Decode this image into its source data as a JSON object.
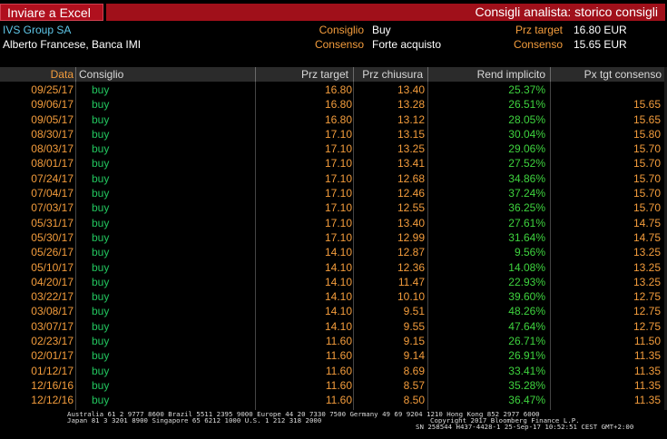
{
  "toolbar": {
    "export_label": "Inviare a Excel"
  },
  "window": {
    "title": "Consigli analista: storico consigli"
  },
  "info": {
    "company": "IVS Group SA",
    "analyst": "Alberto Francese, Banca IMI",
    "consiglio_label": "Consiglio",
    "consiglio_value": "Buy",
    "consenso_label": "Consenso",
    "consenso_value": "Forte acquisto",
    "prz_target_label": "Prz target",
    "prz_target_value": "16.80 EUR",
    "consenso2_label": "Consenso",
    "consenso2_value": "15.65 EUR"
  },
  "table": {
    "headers": {
      "date": "Data",
      "consiglio": "Consiglio",
      "prz_target": "Prz target",
      "prz_chiusura": "Prz chiusura",
      "rend": "Rend implicito",
      "px_tgt": "Px tgt consenso"
    },
    "rows": [
      {
        "date": "09/25/17",
        "cons": "buy",
        "tgt": "16.80",
        "cls": "13.40",
        "ret": "25.37%",
        "px": ""
      },
      {
        "date": "09/06/17",
        "cons": "buy",
        "tgt": "16.80",
        "cls": "13.28",
        "ret": "26.51%",
        "px": "15.65"
      },
      {
        "date": "09/05/17",
        "cons": "buy",
        "tgt": "16.80",
        "cls": "13.12",
        "ret": "28.05%",
        "px": "15.65"
      },
      {
        "date": "08/30/17",
        "cons": "buy",
        "tgt": "17.10",
        "cls": "13.15",
        "ret": "30.04%",
        "px": "15.80"
      },
      {
        "date": "08/03/17",
        "cons": "buy",
        "tgt": "17.10",
        "cls": "13.25",
        "ret": "29.06%",
        "px": "15.70"
      },
      {
        "date": "08/01/17",
        "cons": "buy",
        "tgt": "17.10",
        "cls": "13.41",
        "ret": "27.52%",
        "px": "15.70"
      },
      {
        "date": "07/24/17",
        "cons": "buy",
        "tgt": "17.10",
        "cls": "12.68",
        "ret": "34.86%",
        "px": "15.70"
      },
      {
        "date": "07/04/17",
        "cons": "buy",
        "tgt": "17.10",
        "cls": "12.46",
        "ret": "37.24%",
        "px": "15.70"
      },
      {
        "date": "07/03/17",
        "cons": "buy",
        "tgt": "17.10",
        "cls": "12.55",
        "ret": "36.25%",
        "px": "15.70"
      },
      {
        "date": "05/31/17",
        "cons": "buy",
        "tgt": "17.10",
        "cls": "13.40",
        "ret": "27.61%",
        "px": "14.75"
      },
      {
        "date": "05/30/17",
        "cons": "buy",
        "tgt": "17.10",
        "cls": "12.99",
        "ret": "31.64%",
        "px": "14.75"
      },
      {
        "date": "05/26/17",
        "cons": "buy",
        "tgt": "14.10",
        "cls": "12.87",
        "ret": "9.56%",
        "px": "13.25"
      },
      {
        "date": "05/10/17",
        "cons": "buy",
        "tgt": "14.10",
        "cls": "12.36",
        "ret": "14.08%",
        "px": "13.25"
      },
      {
        "date": "04/20/17",
        "cons": "buy",
        "tgt": "14.10",
        "cls": "11.47",
        "ret": "22.93%",
        "px": "13.25"
      },
      {
        "date": "03/22/17",
        "cons": "buy",
        "tgt": "14.10",
        "cls": "10.10",
        "ret": "39.60%",
        "px": "12.75"
      },
      {
        "date": "03/08/17",
        "cons": "buy",
        "tgt": "14.10",
        "cls": "9.51",
        "ret": "48.26%",
        "px": "12.75"
      },
      {
        "date": "03/07/17",
        "cons": "buy",
        "tgt": "14.10",
        "cls": "9.55",
        "ret": "47.64%",
        "px": "12.75"
      },
      {
        "date": "02/23/17",
        "cons": "buy",
        "tgt": "11.60",
        "cls": "9.15",
        "ret": "26.71%",
        "px": "11.50"
      },
      {
        "date": "02/01/17",
        "cons": "buy",
        "tgt": "11.60",
        "cls": "9.14",
        "ret": "26.91%",
        "px": "11.35"
      },
      {
        "date": "01/12/17",
        "cons": "buy",
        "tgt": "11.60",
        "cls": "8.69",
        "ret": "33.41%",
        "px": "11.35"
      },
      {
        "date": "12/16/16",
        "cons": "buy",
        "tgt": "11.60",
        "cls": "8.57",
        "ret": "35.28%",
        "px": "11.35"
      },
      {
        "date": "12/12/16",
        "cons": "buy",
        "tgt": "11.60",
        "cls": "8.50",
        "ret": "36.47%",
        "px": "11.35"
      }
    ]
  },
  "footer": {
    "line1": "Australia 61 2 9777 8600  Brazil 5511 2395 9000  Europe 44 20 7330 7500  Germany 49 69 9204 1210  Hong Kong 852 2977 6000",
    "line2a": "Japan 81 3 3201 8900         Singapore 65 6212 1000         U.S. 1 212 318 2000",
    "line2b": "Copyright 2017 Bloomberg Finance L.P.",
    "line3": "SN 258544 H437-4428-1 25-Sep-17 10:52:51 CEST  GMT+2:00"
  }
}
